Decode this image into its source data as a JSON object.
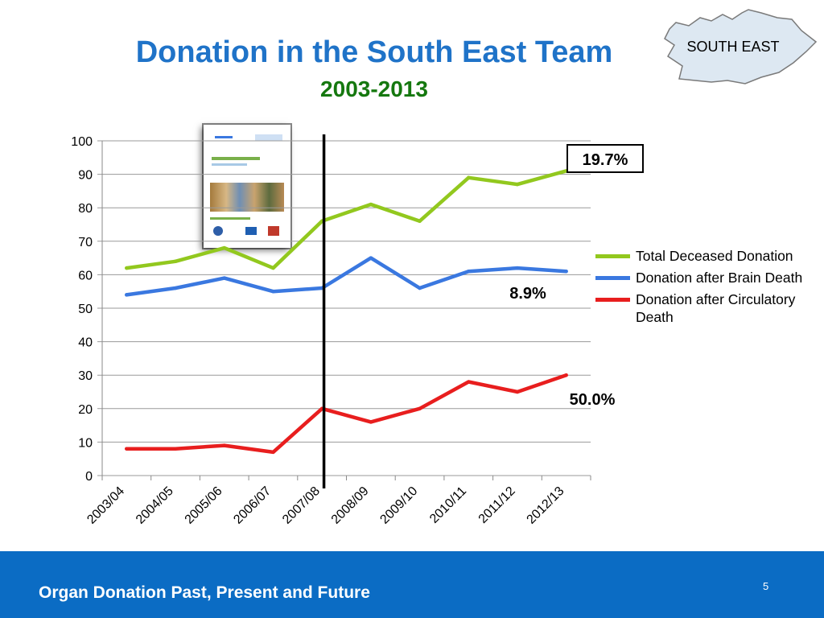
{
  "slide": {
    "title": "Donation in the South East Team",
    "subtitle": "2003-2013",
    "region_label": "SOUTH EAST",
    "footer_text": "Organ Donation Past, Present and Future",
    "page_number": "5"
  },
  "colors": {
    "title": "#1f73c8",
    "subtitle": "#15780f",
    "footer": "#0b6cc4",
    "map_fill": "#dde8f2"
  },
  "chart_data": {
    "type": "line",
    "title": "",
    "xlabel": "",
    "ylabel": "",
    "categories": [
      "2003/04",
      "2004/05",
      "2005/06",
      "2006/07",
      "2007/08",
      "2008/09",
      "2009/10",
      "2010/11",
      "2011/12",
      "2012/13"
    ],
    "ylim": [
      0,
      100
    ],
    "yticks": [
      0,
      10,
      20,
      30,
      40,
      50,
      60,
      70,
      80,
      90,
      100
    ],
    "grid": true,
    "legend_position": "right",
    "series": [
      {
        "name": "Total Deceased Donation",
        "color": "#92c81e",
        "values": [
          62,
          64,
          68,
          62,
          76,
          81,
          76,
          89,
          87,
          91
        ]
      },
      {
        "name": "Donation after Brain Death",
        "color": "#3a78e0",
        "values": [
          54,
          56,
          59,
          55,
          56,
          65,
          56,
          61,
          62,
          61
        ]
      },
      {
        "name": "Donation after Circulatory Death",
        "color": "#e81e1e",
        "values": [
          8,
          8,
          9,
          7,
          20,
          16,
          20,
          28,
          25,
          30
        ]
      }
    ],
    "annotations": [
      {
        "text": "19.7%",
        "boxed": true,
        "series": "Total Deceased Donation"
      },
      {
        "text": "8.9%",
        "boxed": false,
        "series": "Donation after Brain Death"
      },
      {
        "text": "50.0%",
        "boxed": false,
        "series": "Donation after Circulatory Death"
      }
    ],
    "marker_line_category": "2007/08"
  }
}
